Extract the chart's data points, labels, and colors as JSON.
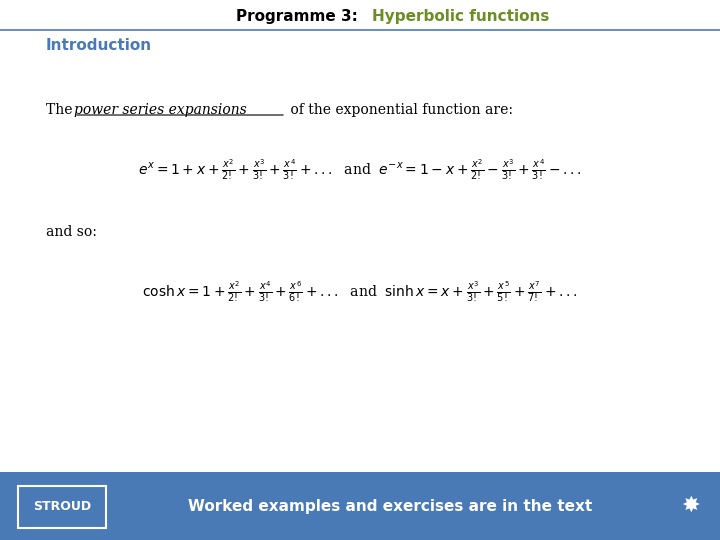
{
  "title_part1": "Programme 3:  ",
  "title_part2": "Hyperbolic functions",
  "title_part1_color": "#000000",
  "title_part2_color": "#6b8e23",
  "section_label": "Introduction",
  "section_label_color": "#4a7ab5",
  "footer_bg_color": "#4a7ab5",
  "footer_text": "Worked examples and exercises are in the text",
  "footer_text_color": "#ffffff",
  "footer_label": "STROUD",
  "footer_label_color": "#ffffff",
  "bg_color": "#ffffff",
  "top_line_color": "#4a7ab5"
}
